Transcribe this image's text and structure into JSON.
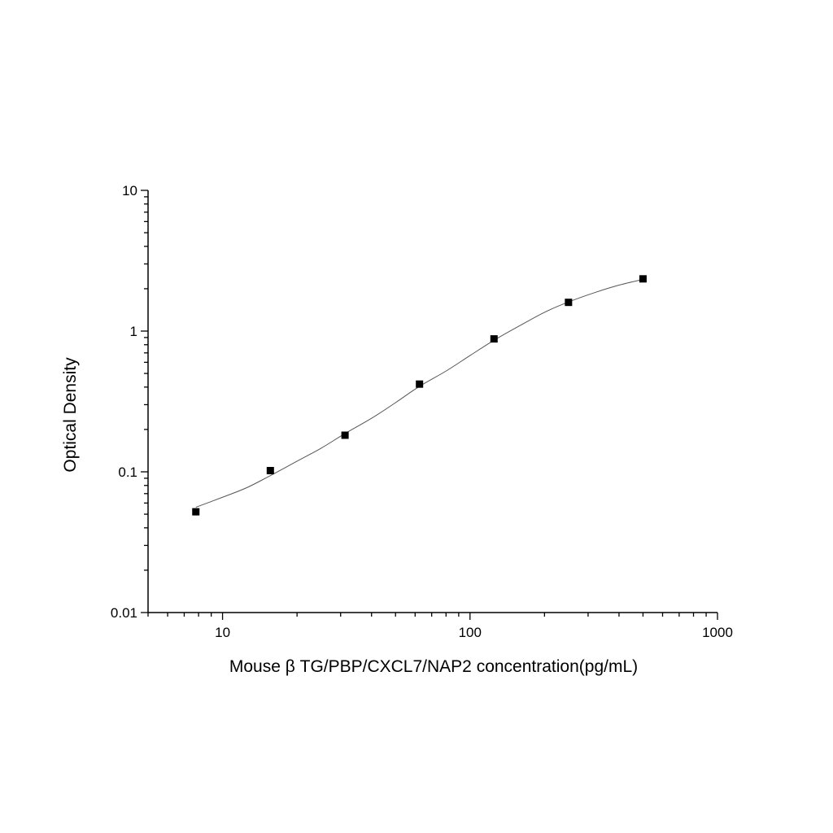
{
  "chart_data": {
    "type": "scatter",
    "title": "",
    "xlabel": "Mouse β TG/PBP/CXCL7/NAP2 concentration(pg/mL)",
    "ylabel": "Optical Density",
    "xscale": "log",
    "yscale": "log",
    "xlim": [
      5,
      1000
    ],
    "ylim": [
      0.01,
      10
    ],
    "x_tick_labels": [
      "10",
      "100",
      "1000"
    ],
    "y_tick_labels": [
      "0.01",
      "0.1",
      "1",
      "10"
    ],
    "grid": false,
    "legend": "none",
    "series": [
      {
        "marker": "square",
        "color": "#000000",
        "x": [
          7.8,
          15.6,
          31.25,
          62.5,
          125,
          250,
          500
        ],
        "y": [
          0.052,
          0.102,
          0.182,
          0.42,
          0.88,
          1.6,
          2.35
        ]
      }
    ],
    "fit_curve": {
      "color": "#555555",
      "x": [
        7.8,
        10,
        12.5,
        15.6,
        20,
        25,
        31.25,
        40,
        50,
        62.5,
        80,
        100,
        125,
        160,
        200,
        250,
        320,
        400,
        500
      ],
      "y": [
        0.056,
        0.066,
        0.077,
        0.094,
        0.119,
        0.147,
        0.187,
        0.24,
        0.31,
        0.405,
        0.52,
        0.67,
        0.86,
        1.1,
        1.36,
        1.61,
        1.88,
        2.12,
        2.33
      ]
    }
  }
}
